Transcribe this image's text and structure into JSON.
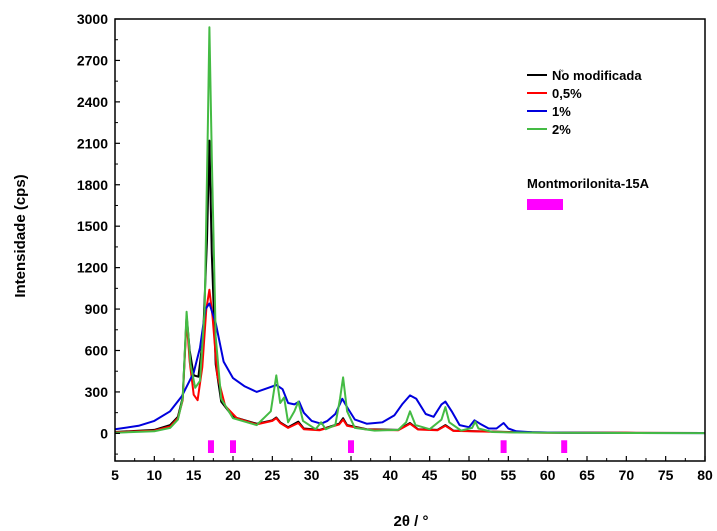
{
  "chart_data": {
    "type": "line",
    "xlabel": "2θ / °",
    "ylabel": "Intensidade (cps)",
    "xlim": [
      5,
      80
    ],
    "ylim": [
      -200,
      3000
    ],
    "xticks": [
      5,
      10,
      15,
      20,
      25,
      30,
      35,
      40,
      45,
      50,
      55,
      60,
      65,
      70,
      75,
      80
    ],
    "yticks": [
      0,
      300,
      600,
      900,
      1200,
      1500,
      1800,
      2100,
      2400,
      2700,
      3000
    ],
    "grid": false,
    "legend_position": "top-right",
    "series": [
      {
        "name": "N֘o modificada",
        "color": "#000000",
        "points": [
          [
            5,
            10
          ],
          [
            10,
            25
          ],
          [
            12,
            60
          ],
          [
            13,
            120
          ],
          [
            13.6,
            260
          ],
          [
            14.1,
            850
          ],
          [
            14.5,
            600
          ],
          [
            15,
            420
          ],
          [
            15.6,
            410
          ],
          [
            16.2,
            700
          ],
          [
            16.7,
            1400
          ],
          [
            17,
            2120
          ],
          [
            17.3,
            1300
          ],
          [
            17.8,
            500
          ],
          [
            18.5,
            230
          ],
          [
            20,
            120
          ],
          [
            23,
            70
          ],
          [
            25,
            95
          ],
          [
            25.5,
            115
          ],
          [
            26,
            80
          ],
          [
            27,
            45
          ],
          [
            28.3,
            85
          ],
          [
            29,
            35
          ],
          [
            31,
            25
          ],
          [
            33.5,
            70
          ],
          [
            34,
            110
          ],
          [
            34.5,
            60
          ],
          [
            37,
            30
          ],
          [
            41,
            25
          ],
          [
            42.5,
            75
          ],
          [
            43.5,
            30
          ],
          [
            46,
            25
          ],
          [
            47,
            60
          ],
          [
            48,
            20
          ],
          [
            51,
            15
          ],
          [
            55,
            10
          ],
          [
            60,
            6
          ],
          [
            70,
            4
          ],
          [
            80,
            3
          ]
        ]
      },
      {
        "name": "0,5%",
        "color": "#ff0000",
        "points": [
          [
            5,
            8
          ],
          [
            10,
            20
          ],
          [
            12,
            50
          ],
          [
            13,
            110
          ],
          [
            13.6,
            240
          ],
          [
            14.1,
            830
          ],
          [
            14.5,
            520
          ],
          [
            15,
            280
          ],
          [
            15.5,
            240
          ],
          [
            16.1,
            480
          ],
          [
            16.6,
            900
          ],
          [
            17,
            1040
          ],
          [
            17.4,
            850
          ],
          [
            18,
            420
          ],
          [
            19,
            200
          ],
          [
            20.5,
            110
          ],
          [
            23,
            65
          ],
          [
            25,
            90
          ],
          [
            25.5,
            110
          ],
          [
            26,
            75
          ],
          [
            27,
            40
          ],
          [
            28.3,
            75
          ],
          [
            29,
            30
          ],
          [
            31,
            22
          ],
          [
            33.5,
            65
          ],
          [
            34,
            100
          ],
          [
            34.5,
            55
          ],
          [
            37,
            28
          ],
          [
            41,
            22
          ],
          [
            42.5,
            70
          ],
          [
            43.5,
            28
          ],
          [
            46,
            22
          ],
          [
            47,
            55
          ],
          [
            48,
            18
          ],
          [
            51,
            14
          ],
          [
            55,
            9
          ],
          [
            60,
            5
          ],
          [
            70,
            4
          ],
          [
            80,
            3
          ]
        ]
      },
      {
        "name": "1%",
        "color": "#0000dd",
        "points": [
          [
            5,
            30
          ],
          [
            8,
            55
          ],
          [
            10,
            90
          ],
          [
            12,
            160
          ],
          [
            13.5,
            270
          ],
          [
            14.3,
            360
          ],
          [
            15,
            440
          ],
          [
            15.8,
            620
          ],
          [
            16.5,
            900
          ],
          [
            17,
            940
          ],
          [
            17.8,
            800
          ],
          [
            18.8,
            520
          ],
          [
            20,
            400
          ],
          [
            21.5,
            340
          ],
          [
            23,
            300
          ],
          [
            24.5,
            330
          ],
          [
            25.5,
            350
          ],
          [
            26.3,
            320
          ],
          [
            27,
            220
          ],
          [
            27.8,
            210
          ],
          [
            28.4,
            230
          ],
          [
            29,
            150
          ],
          [
            30,
            90
          ],
          [
            31.2,
            70
          ],
          [
            32,
            90
          ],
          [
            33,
            140
          ],
          [
            33.9,
            250
          ],
          [
            34.6,
            180
          ],
          [
            35.5,
            100
          ],
          [
            37,
            70
          ],
          [
            39,
            80
          ],
          [
            40.5,
            130
          ],
          [
            41.5,
            210
          ],
          [
            42.5,
            275
          ],
          [
            43.3,
            250
          ],
          [
            44.5,
            140
          ],
          [
            45.5,
            120
          ],
          [
            46.5,
            210
          ],
          [
            47,
            230
          ],
          [
            47.8,
            160
          ],
          [
            48.8,
            60
          ],
          [
            50,
            45
          ],
          [
            50.7,
            95
          ],
          [
            51.4,
            70
          ],
          [
            52.5,
            35
          ],
          [
            53.5,
            35
          ],
          [
            54.4,
            75
          ],
          [
            55,
            35
          ],
          [
            56,
            15
          ],
          [
            58,
            8
          ],
          [
            62,
            5
          ],
          [
            70,
            3
          ],
          [
            80,
            2
          ]
        ]
      },
      {
        "name": "2%",
        "color": "#44bb44",
        "points": [
          [
            5,
            5
          ],
          [
            10,
            15
          ],
          [
            12,
            40
          ],
          [
            13,
            100
          ],
          [
            13.6,
            250
          ],
          [
            14.1,
            880
          ],
          [
            14.6,
            500
          ],
          [
            15.2,
            330
          ],
          [
            15.8,
            380
          ],
          [
            16.4,
            900
          ],
          [
            16.8,
            2200
          ],
          [
            17,
            2940
          ],
          [
            17.3,
            2000
          ],
          [
            17.8,
            700
          ],
          [
            18.5,
            250
          ],
          [
            20,
            110
          ],
          [
            23,
            60
          ],
          [
            24.8,
            160
          ],
          [
            25.5,
            420
          ],
          [
            26,
            220
          ],
          [
            26.5,
            260
          ],
          [
            27,
            80
          ],
          [
            27.8,
            160
          ],
          [
            28.3,
            230
          ],
          [
            28.9,
            90
          ],
          [
            30.5,
            30
          ],
          [
            31.2,
            80
          ],
          [
            31.8,
            30
          ],
          [
            33,
            60
          ],
          [
            33.6,
            250
          ],
          [
            34,
            405
          ],
          [
            34.5,
            160
          ],
          [
            35.5,
            40
          ],
          [
            38,
            20
          ],
          [
            41,
            25
          ],
          [
            42,
            80
          ],
          [
            42.5,
            160
          ],
          [
            43.2,
            60
          ],
          [
            45,
            30
          ],
          [
            46.5,
            100
          ],
          [
            47,
            190
          ],
          [
            47.5,
            80
          ],
          [
            49,
            20
          ],
          [
            50.4,
            40
          ],
          [
            50.8,
            85
          ],
          [
            51.2,
            35
          ],
          [
            53,
            10
          ],
          [
            56,
            6
          ],
          [
            60,
            4
          ],
          [
            70,
            3
          ],
          [
            80,
            2
          ]
        ]
      }
    ],
    "reference": {
      "name": "Montmorilonita-15A",
      "color": "#ff00ff",
      "positions": [
        17.2,
        20,
        35,
        54.4,
        62.1
      ],
      "height": -200
    }
  }
}
